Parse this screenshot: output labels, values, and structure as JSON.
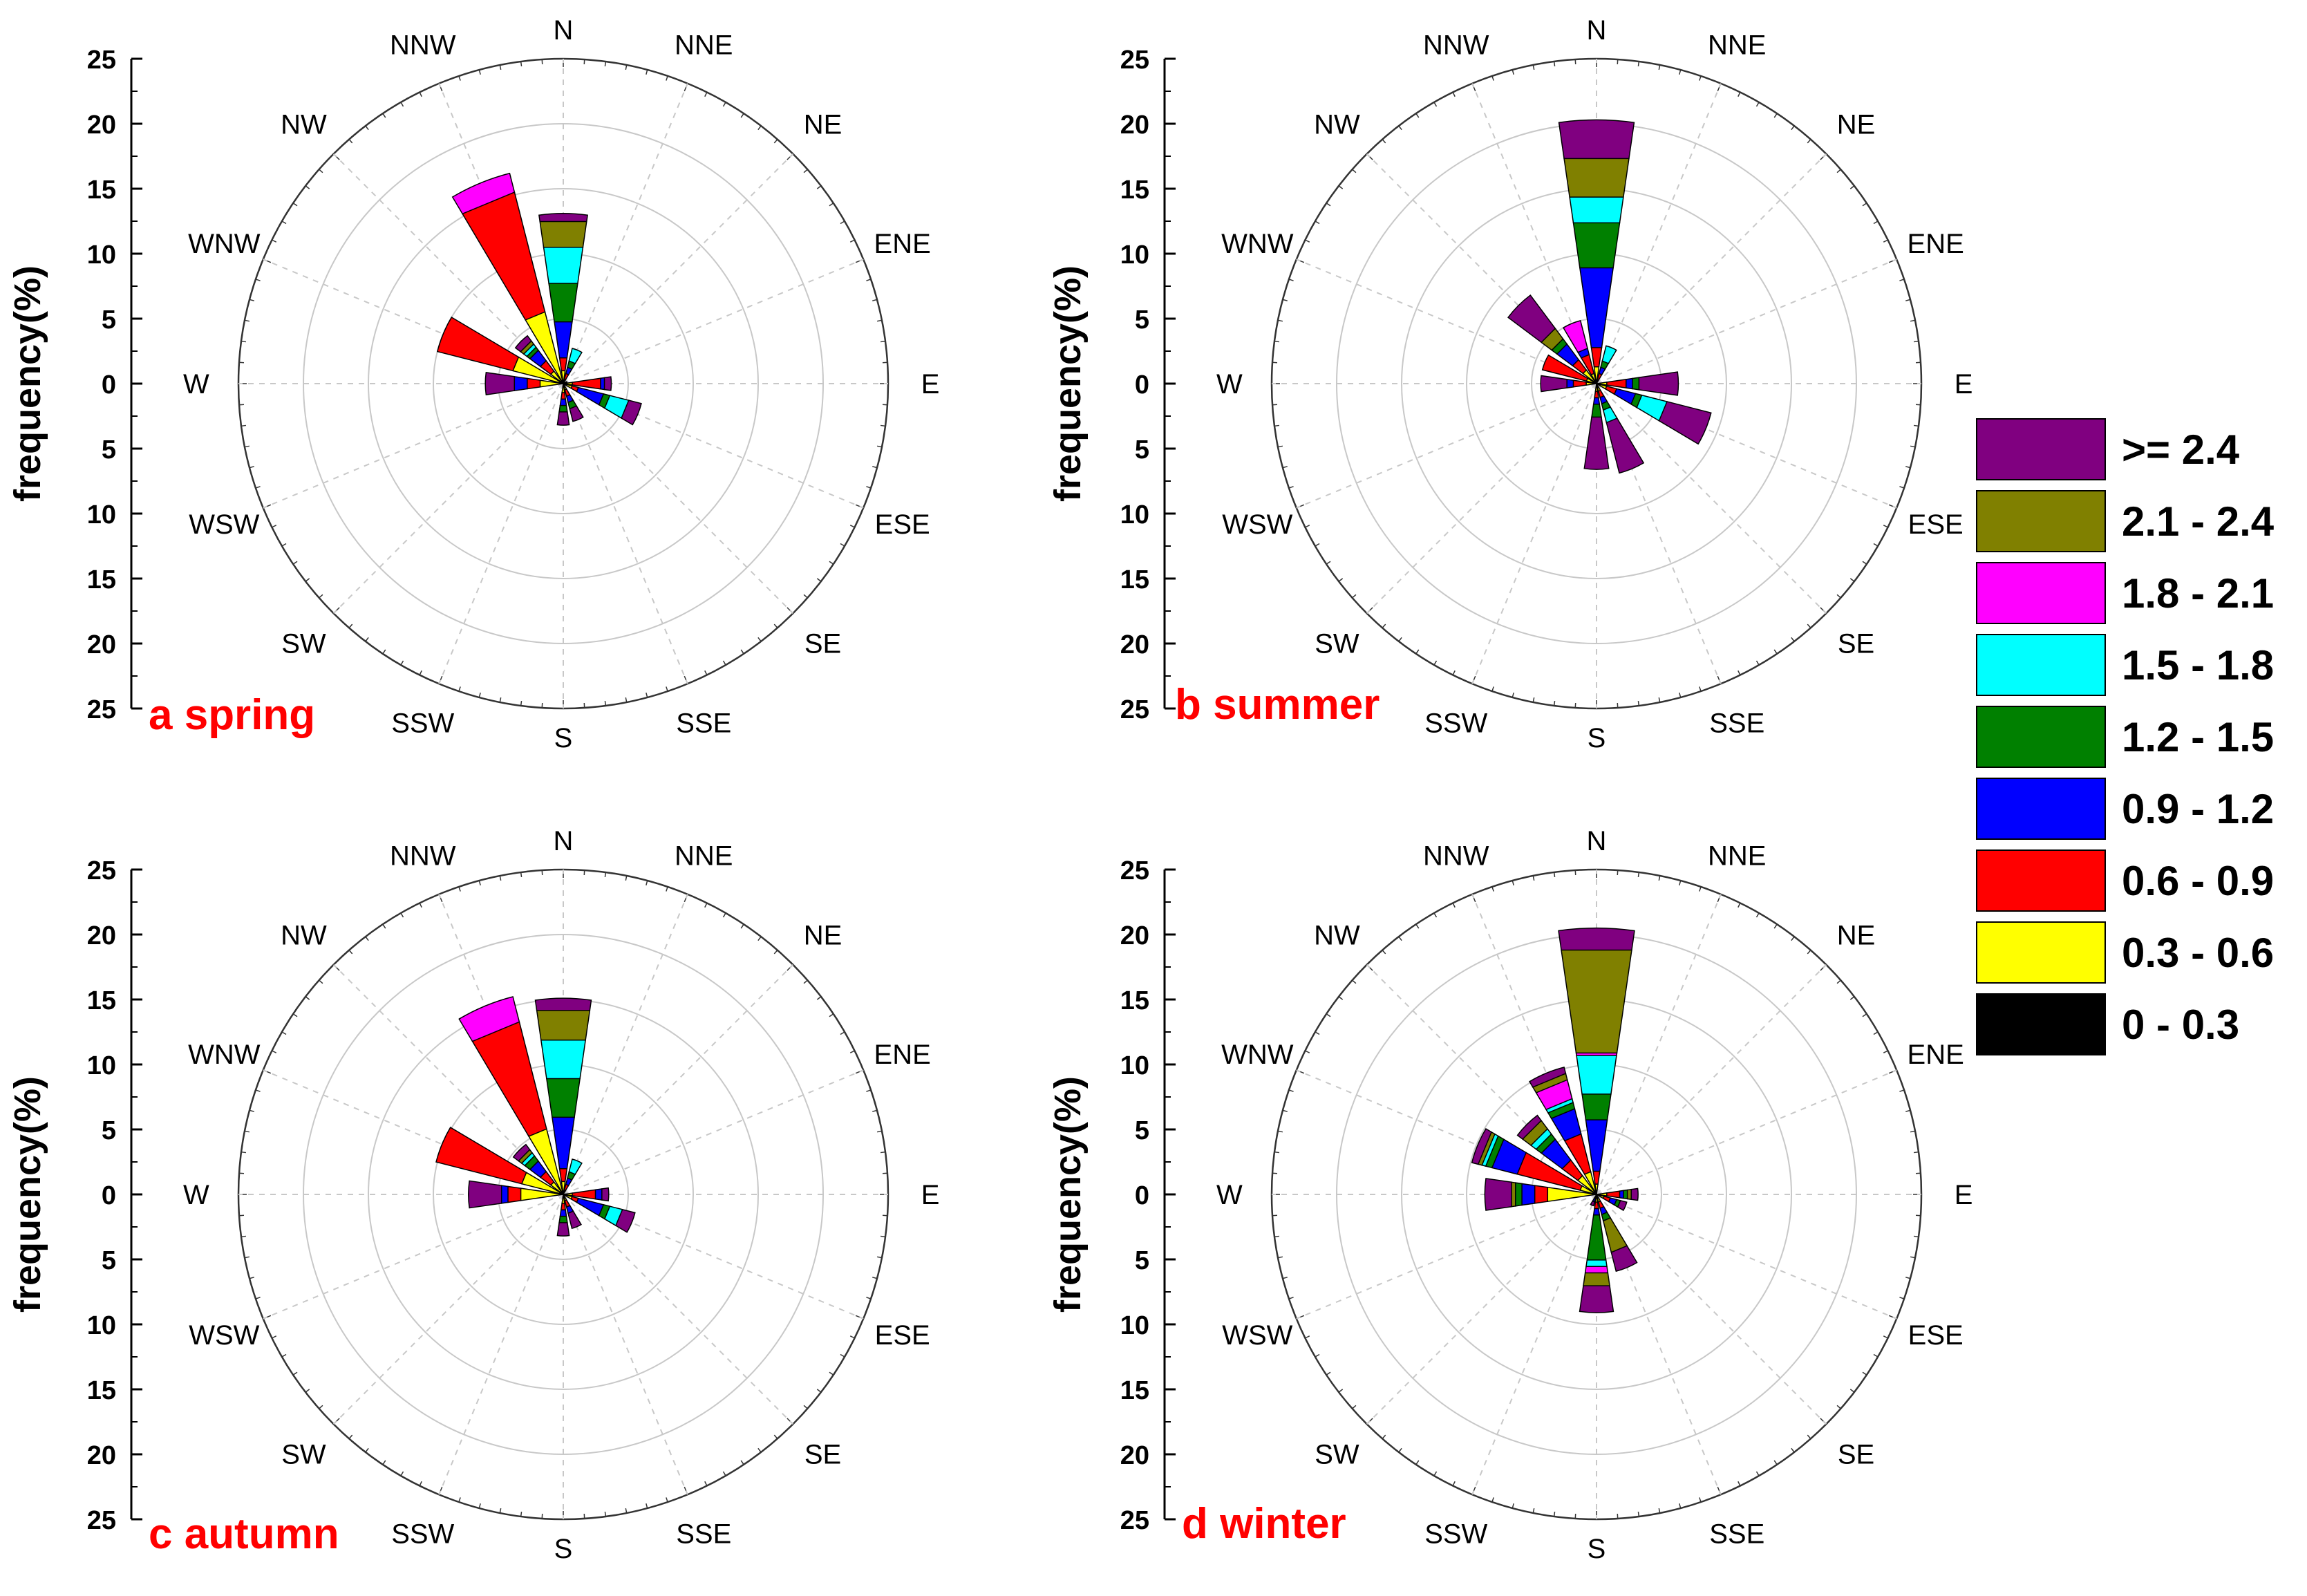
{
  "colors": {
    "title": "#ff0000",
    "grid": "#c8c8c8",
    "bins": [
      "#000000",
      "#ffff00",
      "#ff0000",
      "#0000ff",
      "#008000",
      "#00ffff",
      "#ff00ff",
      "#808000",
      "#800080"
    ]
  },
  "legend": {
    "labels": [
      ">= 2.4",
      "2.1 - 2.4",
      "1.8 - 2.1",
      "1.5 - 1.8",
      "1.2 - 1.5",
      "0.9 - 1.2",
      "0.6 - 0.9",
      "0.3 - 0.6",
      "0 - 0.3"
    ],
    "colors": [
      "#800080",
      "#808000",
      "#ff00ff",
      "#00ffff",
      "#008000",
      "#0000ff",
      "#ff0000",
      "#ffff00",
      "#000000"
    ]
  },
  "chart_data": [
    {
      "type": "windrose",
      "title": "a spring",
      "ylabel": "frequency(%)",
      "rlim": [
        0,
        25
      ],
      "y_ticks": [
        "25",
        "20",
        "15",
        "10",
        "5",
        "0",
        "5",
        "10",
        "15",
        "20",
        "25"
      ],
      "directions": [
        "N",
        "NNE",
        "NE",
        "ENE",
        "E",
        "ESE",
        "SE",
        "SSE",
        "S",
        "SSW",
        "SW",
        "WSW",
        "W",
        "WNW",
        "NW",
        "NNW"
      ],
      "bins": [
        "0 - 0.3",
        "0.3 - 0.6",
        "0.6 - 0.9",
        "0.9 - 1.2",
        "1.2 - 1.5",
        "1.5 - 1.8",
        "1.8 - 2.1",
        "2.1 - 2.4",
        ">= 2.4"
      ],
      "sectors": [
        {
          "dir": "N",
          "values": [
            0.2,
            0.8,
            1.0,
            2.8,
            3.0,
            2.8,
            0,
            2.0,
            0.5
          ]
        },
        {
          "dir": "NNE",
          "values": [
            0,
            0.3,
            0.5,
            0.5,
            0.5,
            1.0,
            0,
            0,
            0
          ]
        },
        {
          "dir": "ENE",
          "values": [
            0,
            0,
            0,
            0.3,
            0,
            0,
            0,
            0,
            0
          ]
        },
        {
          "dir": "E",
          "values": [
            0.2,
            0.5,
            2.2,
            0.3,
            0,
            0,
            0,
            0,
            0.5
          ]
        },
        {
          "dir": "ESE",
          "values": [
            0.2,
            0.5,
            0.5,
            2.0,
            0.5,
            1.5,
            0,
            0,
            1.0
          ]
        },
        {
          "dir": "SSE",
          "values": [
            0.2,
            0.3,
            0.5,
            0.5,
            0.5,
            0,
            0,
            0,
            1.0
          ]
        },
        {
          "dir": "S",
          "values": [
            0.2,
            0.5,
            0.5,
            0.5,
            0.5,
            0,
            0,
            0,
            1.0
          ]
        },
        {
          "dir": "W",
          "values": [
            0.3,
            1.5,
            1.0,
            1.0,
            0,
            0,
            0,
            0,
            2.2
          ]
        },
        {
          "dir": "WNW",
          "values": [
            0.3,
            3.7,
            6.0,
            0,
            0,
            0,
            0,
            0,
            0
          ]
        },
        {
          "dir": "NW",
          "values": [
            0.2,
            1.0,
            1.0,
            1.0,
            0.3,
            0.3,
            0,
            0.3,
            0.5
          ]
        },
        {
          "dir": "NNW",
          "values": [
            0.2,
            5.5,
            9.5,
            0,
            0,
            0,
            1.5,
            0,
            0
          ]
        }
      ]
    },
    {
      "type": "windrose",
      "title": "b summer",
      "ylabel": "frequency(%)",
      "rlim": [
        0,
        25
      ],
      "y_ticks": [
        "25",
        "20",
        "15",
        "10",
        "5",
        "0",
        "5",
        "10",
        "15",
        "20",
        "25"
      ],
      "directions": [
        "N",
        "NNE",
        "NE",
        "ENE",
        "E",
        "ESE",
        "SE",
        "SSE",
        "S",
        "SSW",
        "SW",
        "WSW",
        "W",
        "WNW",
        "NW",
        "NNW"
      ],
      "bins": [
        "0 - 0.3",
        "0.3 - 0.6",
        "0.6 - 0.9",
        "0.9 - 1.2",
        "1.2 - 1.5",
        "1.5 - 1.8",
        "1.8 - 2.1",
        "2.1 - 2.4",
        ">= 2.4"
      ],
      "sectors": [
        {
          "dir": "N",
          "values": [
            0.3,
            1.0,
            1.5,
            6.2,
            3.5,
            2.0,
            0,
            3.0,
            2.8
          ]
        },
        {
          "dir": "NNE",
          "values": [
            0,
            0.3,
            0.5,
            0.5,
            0.5,
            1.2,
            0,
            0,
            0
          ]
        },
        {
          "dir": "E",
          "values": [
            0.3,
            0.5,
            1.5,
            0.5,
            0.5,
            0,
            0,
            0,
            3.0
          ]
        },
        {
          "dir": "ESE",
          "values": [
            0.3,
            0.5,
            0.8,
            1.5,
            0.5,
            2.0,
            0,
            0,
            3.5
          ]
        },
        {
          "dir": "SSE",
          "values": [
            0.3,
            0.3,
            0.5,
            0.5,
            0.5,
            1.0,
            0,
            0,
            4.0
          ]
        },
        {
          "dir": "S",
          "values": [
            0.3,
            0.3,
            0.5,
            0.5,
            1.0,
            0,
            0,
            0,
            4.0
          ]
        },
        {
          "dir": "W",
          "values": [
            0.3,
            0.5,
            1.0,
            0.5,
            0,
            0,
            0,
            0,
            2.0
          ]
        },
        {
          "dir": "WNW",
          "values": [
            0.3,
            0.5,
            3.5,
            0,
            0,
            0,
            0,
            0,
            0
          ]
        },
        {
          "dir": "NW",
          "values": [
            0.3,
            1.0,
            1.0,
            1.5,
            0.5,
            0,
            0,
            1.0,
            3.2
          ]
        },
        {
          "dir": "NNW",
          "values": [
            0.3,
            0.5,
            1.5,
            0.5,
            0,
            0,
            2.2,
            0,
            0
          ]
        }
      ]
    },
    {
      "type": "windrose",
      "title": "c autumn",
      "ylabel": "frequency(%)",
      "rlim": [
        0,
        25
      ],
      "y_ticks": [
        "25",
        "20",
        "15",
        "10",
        "5",
        "0",
        "5",
        "10",
        "15",
        "20",
        "25"
      ],
      "directions": [
        "N",
        "NNE",
        "NE",
        "ENE",
        "E",
        "ESE",
        "SE",
        "SSE",
        "S",
        "SSW",
        "SW",
        "WSW",
        "W",
        "WNW",
        "NW",
        "NNW"
      ],
      "bins": [
        "0 - 0.3",
        "0.3 - 0.6",
        "0.6 - 0.9",
        "0.9 - 1.2",
        "1.2 - 1.5",
        "1.5 - 1.8",
        "1.8 - 2.1",
        "2.1 - 2.4",
        ">= 2.4"
      ],
      "sectors": [
        {
          "dir": "N",
          "values": [
            0.2,
            0.8,
            1.0,
            4.0,
            3.0,
            3.0,
            0,
            2.3,
            0.8
          ]
        },
        {
          "dir": "NNE",
          "values": [
            0,
            0.3,
            0.5,
            0.5,
            0.5,
            1.0,
            0,
            0,
            0
          ]
        },
        {
          "dir": "E",
          "values": [
            0.2,
            0.5,
            1.8,
            0.5,
            0,
            0,
            0,
            0,
            0.5
          ]
        },
        {
          "dir": "ESE",
          "values": [
            0.2,
            0.5,
            0.5,
            2.0,
            0.5,
            1.0,
            0,
            0,
            1.0
          ]
        },
        {
          "dir": "SSE",
          "values": [
            0.2,
            0.3,
            0.5,
            0.5,
            0,
            0,
            0,
            0,
            1.2
          ]
        },
        {
          "dir": "S",
          "values": [
            0.2,
            0.5,
            0.5,
            0.5,
            0.5,
            0,
            0,
            0,
            1.0
          ]
        },
        {
          "dir": "W",
          "values": [
            0.3,
            3.0,
            1.0,
            0.5,
            0,
            0,
            0,
            0,
            2.5
          ]
        },
        {
          "dir": "WNW",
          "values": [
            0.3,
            3.0,
            6.8,
            0,
            0,
            0,
            0,
            0,
            0
          ]
        },
        {
          "dir": "NW",
          "values": [
            0.2,
            1.0,
            1.0,
            1.0,
            0.5,
            0.3,
            0,
            0.3,
            0.5
          ]
        },
        {
          "dir": "NNW",
          "values": [
            0.2,
            5.0,
            8.5,
            0,
            0,
            0,
            2.0,
            0,
            0
          ]
        }
      ]
    },
    {
      "type": "windrose",
      "title": "d winter",
      "ylabel": "frequency(%)",
      "rlim": [
        0,
        25
      ],
      "y_ticks": [
        "25",
        "20",
        "15",
        "10",
        "5",
        "0",
        "5",
        "10",
        "15",
        "20",
        "25"
      ],
      "directions": [
        "N",
        "NNE",
        "NE",
        "ENE",
        "E",
        "ESE",
        "SE",
        "SSE",
        "S",
        "SSW",
        "SW",
        "WSW",
        "W",
        "WNW",
        "NW",
        "NNW"
      ],
      "bins": [
        "0 - 0.3",
        "0.3 - 0.6",
        "0.6 - 0.9",
        "0.9 - 1.2",
        "1.2 - 1.5",
        "1.5 - 1.8",
        "1.8 - 2.1",
        "2.1 - 2.4",
        ">= 2.4"
      ],
      "sectors": [
        {
          "dir": "N",
          "values": [
            0.3,
            0.5,
            1.0,
            4.0,
            2.0,
            3.0,
            0.2,
            8.0,
            1.5
          ]
        },
        {
          "dir": "E",
          "values": [
            0.3,
            0.5,
            1.0,
            0.3,
            0.3,
            0,
            0,
            0.3,
            0.5
          ]
        },
        {
          "dir": "ESE",
          "values": [
            0.3,
            0.3,
            0.5,
            0.5,
            0.3,
            0,
            0,
            0,
            0.5
          ]
        },
        {
          "dir": "SSE",
          "values": [
            0.3,
            0.3,
            0.5,
            0.5,
            0.5,
            0,
            0,
            2.5,
            1.5
          ]
        },
        {
          "dir": "S",
          "values": [
            0.3,
            0.3,
            0.5,
            0.5,
            3.5,
            0.5,
            0.5,
            1.0,
            2.0
          ]
        },
        {
          "dir": "SSW",
          "values": [
            0.3,
            0,
            0,
            0.3,
            0,
            0,
            0,
            0,
            0.3
          ]
        },
        {
          "dir": "W",
          "values": [
            0.3,
            3.5,
            1.0,
            1.0,
            0.5,
            0,
            0,
            0.3,
            2.0
          ]
        },
        {
          "dir": "WNW",
          "values": [
            0.3,
            1.0,
            5.0,
            2.0,
            0.5,
            0.3,
            0,
            0.3,
            0.5
          ]
        },
        {
          "dir": "NW",
          "values": [
            0.3,
            1.5,
            1.5,
            2.0,
            0.5,
            0.5,
            0,
            0.8,
            0.5
          ]
        },
        {
          "dir": "NNW",
          "values": [
            0.3,
            1.5,
            3.0,
            2.0,
            0.5,
            0.3,
            1.5,
            0.5,
            0.5
          ]
        }
      ]
    }
  ]
}
